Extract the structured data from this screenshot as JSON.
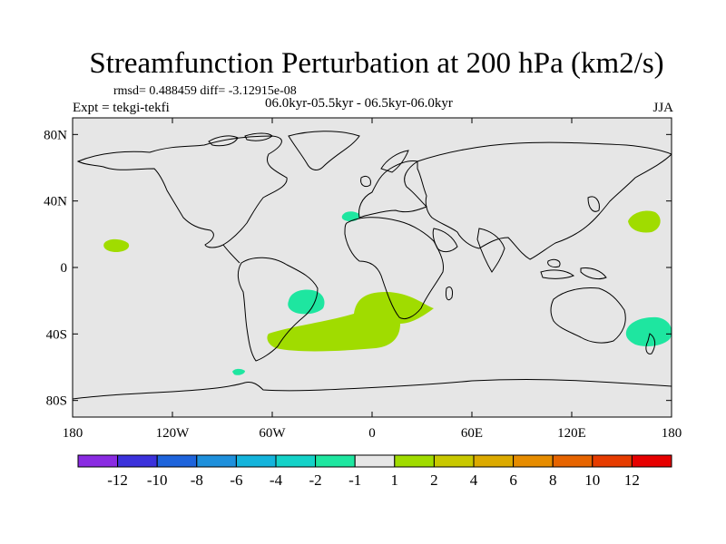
{
  "title": "Streamfunction Perturbation at 200 hPa (km2/s)",
  "stats": "rmsd= 0.488459 diff= -3.12915e-08",
  "experiment": "Expt = tekgi-tekfi",
  "period": "06.0kyr-05.5kyr - 06.5kyr-06.0kyr",
  "season": "JJA",
  "map": {
    "background_color": "#e6e6e6",
    "lat_ticks": [
      "80N",
      "40N",
      "0",
      "40S",
      "80S"
    ],
    "lon_ticks": [
      "180",
      "120W",
      "60W",
      "0",
      "60E",
      "120E",
      "180"
    ]
  },
  "colorbar": {
    "colors": [
      "#8a2be2",
      "#3c32dc",
      "#1e64dc",
      "#1e90dc",
      "#14b4dc",
      "#14d2c8",
      "#1ee6a0",
      "#e6e6e6",
      "#a0dc00",
      "#c8c800",
      "#dcaa00",
      "#e68c00",
      "#e66400",
      "#e63c00",
      "#e60000"
    ],
    "labels": [
      "-12",
      "-10",
      "-8",
      "-6",
      "-4",
      "-2",
      "-1",
      "1",
      "2",
      "4",
      "6",
      "8",
      "10",
      "12"
    ]
  },
  "anomalies": [
    {
      "name": "south-atlantic-positive",
      "color": "#a0dc00",
      "value_class": "1 to 2"
    },
    {
      "name": "north-pacific-west-positive",
      "color": "#a0dc00",
      "value_class": "1 to 2"
    },
    {
      "name": "east-pacific-positive",
      "color": "#a0dc00",
      "value_class": "1 to 2"
    },
    {
      "name": "south-america-negative",
      "color": "#1ee6a0",
      "value_class": "-2 to -1"
    },
    {
      "name": "australia-east-negative",
      "color": "#1ee6a0",
      "value_class": "-2 to -1"
    },
    {
      "name": "north-africa-negative",
      "color": "#1ee6a0",
      "value_class": "-2 to -1"
    },
    {
      "name": "drake-passage-negative",
      "color": "#1ee6a0",
      "value_class": "-2 to -1"
    }
  ]
}
